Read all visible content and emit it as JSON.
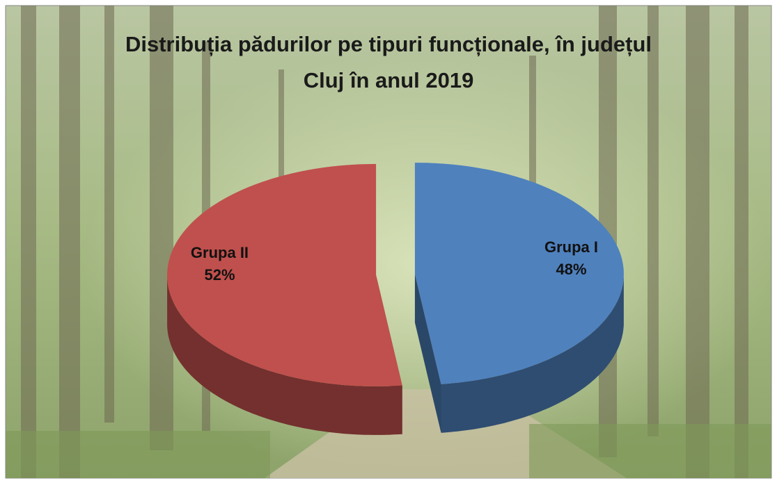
{
  "chart_data": {
    "type": "pie",
    "title": "Distribuția pădurilor pe tipuri funcționale, în județul Cluj în anul 2019",
    "categories": [
      "Grupa I",
      "Grupa II"
    ],
    "values": [
      48,
      52
    ],
    "value_labels": [
      "48%",
      "52%"
    ],
    "colors": [
      "#4f81bd",
      "#c0504d"
    ]
  }
}
